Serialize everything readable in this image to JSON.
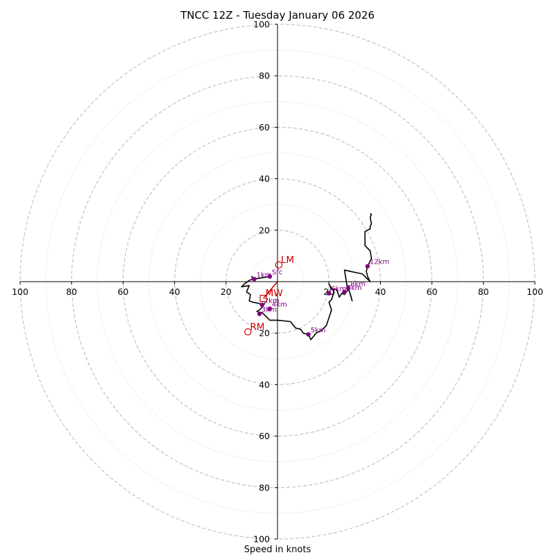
{
  "chart_data": {
    "type": "hodograph",
    "title": "TNCC 12Z - Tuesday January 06 2026",
    "xlabel": "Speed in knots",
    "units": "knots",
    "range": [
      -100,
      100
    ],
    "major_rings": [
      20,
      40,
      60,
      80,
      100
    ],
    "minor_rings": [
      10,
      30,
      50,
      70,
      90
    ],
    "tick_labels": {
      "x_left": [
        "100",
        "80",
        "60",
        "40",
        "20"
      ],
      "x_right": [
        "20",
        "40",
        "60",
        "80",
        "100"
      ],
      "y_up": [
        "20",
        "40",
        "60",
        "80",
        "100"
      ],
      "y_down": [
        "20",
        "40",
        "60",
        "80",
        "100"
      ]
    },
    "tick_values": {
      "x_left": [
        -100,
        -80,
        -60,
        -40,
        -20
      ],
      "x_right": [
        20,
        40,
        60,
        80,
        100
      ],
      "y_up": [
        20,
        40,
        60,
        80,
        100
      ],
      "y_down": [
        -20,
        -40,
        -60,
        -80,
        -100
      ]
    },
    "trace": [
      [
        -3,
        2
      ],
      [
        -6,
        1.5
      ],
      [
        -9,
        1
      ],
      [
        -10,
        2
      ],
      [
        -9.5,
        1
      ],
      [
        -11,
        0.5
      ],
      [
        -13,
        -1
      ],
      [
        -14,
        -2
      ],
      [
        -11,
        -1.5
      ],
      [
        -12,
        -4
      ],
      [
        -10.5,
        -5
      ],
      [
        -11,
        -7.5
      ],
      [
        -9.5,
        -8
      ],
      [
        -7,
        -8.5
      ],
      [
        -6.5,
        -9
      ],
      [
        -6,
        -9.5
      ],
      [
        -5,
        -8.5
      ],
      [
        -6,
        -10
      ],
      [
        -7,
        -11
      ],
      [
        -8,
        -11.5
      ],
      [
        -7,
        -12
      ],
      [
        -6,
        -12
      ],
      [
        -3,
        -15
      ],
      [
        0,
        -15
      ],
      [
        5,
        -15.5
      ],
      [
        7,
        -18
      ],
      [
        9,
        -18.5
      ],
      [
        10,
        -20
      ],
      [
        12,
        -20.5
      ],
      [
        13,
        -22.5
      ],
      [
        15,
        -20
      ],
      [
        17,
        -19
      ],
      [
        19,
        -17
      ],
      [
        21,
        -11
      ],
      [
        20,
        -8
      ],
      [
        21,
        -7
      ],
      [
        22,
        -4
      ],
      [
        20,
        -1
      ],
      [
        21,
        -3
      ],
      [
        23,
        -3
      ],
      [
        24,
        -6
      ],
      [
        25,
        -4.5
      ],
      [
        26,
        -5
      ],
      [
        27.5,
        -3
      ],
      [
        28,
        -4
      ],
      [
        29,
        -7.5
      ],
      [
        28.5,
        -5.5
      ],
      [
        28,
        -4
      ],
      [
        27.5,
        -2.5
      ],
      [
        27,
        -2
      ],
      [
        27,
        -1.5
      ],
      [
        26,
        4.5
      ],
      [
        33,
        3
      ],
      [
        36,
        0
      ],
      [
        35,
        2
      ],
      [
        34.5,
        4
      ],
      [
        35,
        6
      ],
      [
        36.5,
        9
      ],
      [
        36,
        12
      ],
      [
        34,
        14
      ],
      [
        34,
        19.5
      ],
      [
        36,
        20.5
      ],
      [
        36,
        21.5
      ],
      [
        36.5,
        22.5
      ],
      [
        36,
        25
      ],
      [
        36.5,
        26
      ],
      [
        36,
        26.5
      ]
    ],
    "height_markers": [
      {
        "label": "Sfc",
        "u": -3,
        "v": 2
      },
      {
        "label": "1km",
        "u": -9,
        "v": 1
      },
      {
        "label": "2km",
        "u": -6,
        "v": -9
      },
      {
        "label": "3km",
        "u": -7,
        "v": -12.5
      },
      {
        "label": "4km",
        "u": -3,
        "v": -10.5
      },
      {
        "label": "5km",
        "u": 12,
        "v": -20.5
      },
      {
        "label": "6km",
        "u": 20,
        "v": -4.5
      },
      {
        "label": "7km",
        "u": 26,
        "v": -4
      },
      {
        "label": "8km",
        "u": 27.5,
        "v": -2.5
      },
      {
        "label": "12km",
        "u": 35,
        "v": 6
      }
    ],
    "motion_markers": [
      {
        "label": "LM",
        "u": 0.5,
        "v": 6.5,
        "shape": "circle"
      },
      {
        "label": "RM",
        "u": -11.5,
        "v": -19.5,
        "shape": "circle"
      },
      {
        "label": "MW",
        "u": -5.5,
        "v": -6.5,
        "shape": "square"
      }
    ],
    "mean_wind_vector": {
      "from": [
        0,
        0
      ],
      "to": [
        -5.5,
        -6.5
      ]
    },
    "colors": {
      "trace": "#000000",
      "height_marker": "#800080",
      "motion": "#cc0000",
      "ring": "#bdbdbd",
      "minor_ring": "#d4d4d4",
      "axis": "#000000"
    }
  }
}
